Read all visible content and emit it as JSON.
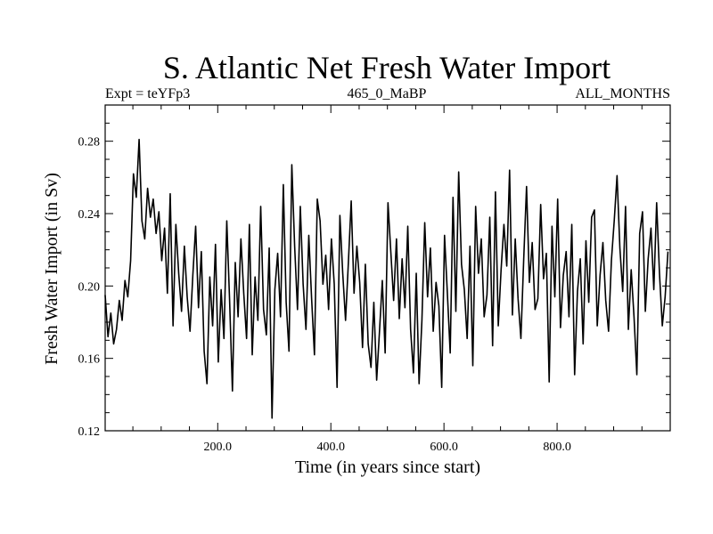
{
  "chart_data": {
    "type": "line",
    "title": "S. Atlantic Net Fresh Water Import",
    "subtitle_left": "Expt = teYFp3",
    "subtitle_center": "465_0_MaBP",
    "subtitle_right": "ALL_MONTHS",
    "xlabel": "Time (in years since start)",
    "ylabel": "Fresh Water Import (in Sv)",
    "xlim": [
      1,
      1000
    ],
    "ylim": [
      0.12,
      0.3
    ],
    "x_ticks_major": [
      200,
      400,
      600,
      800
    ],
    "x_tick_labels": [
      "200.0",
      "400.0",
      "600.0",
      "800.0"
    ],
    "y_ticks_major": [
      0.12,
      0.16,
      0.2,
      0.24,
      0.28
    ],
    "y_tick_labels": [
      "0.12",
      "0.16",
      "0.20",
      "0.24",
      "0.28"
    ],
    "series": [
      {
        "name": "net_fresh_water_import",
        "x_start": 1,
        "x_step": 5,
        "values": [
          0.195,
          0.172,
          0.185,
          0.168,
          0.176,
          0.192,
          0.181,
          0.203,
          0.194,
          0.214,
          0.262,
          0.249,
          0.281,
          0.236,
          0.226,
          0.254,
          0.238,
          0.248,
          0.229,
          0.241,
          0.214,
          0.232,
          0.196,
          0.251,
          0.178,
          0.234,
          0.207,
          0.186,
          0.222,
          0.194,
          0.175,
          0.206,
          0.233,
          0.188,
          0.219,
          0.164,
          0.146,
          0.205,
          0.178,
          0.223,
          0.158,
          0.198,
          0.171,
          0.236,
          0.192,
          0.142,
          0.213,
          0.183,
          0.226,
          0.196,
          0.171,
          0.234,
          0.162,
          0.205,
          0.181,
          0.244,
          0.187,
          0.173,
          0.221,
          0.127,
          0.198,
          0.218,
          0.183,
          0.256,
          0.191,
          0.164,
          0.267,
          0.222,
          0.187,
          0.244,
          0.201,
          0.176,
          0.228,
          0.193,
          0.162,
          0.248,
          0.236,
          0.201,
          0.217,
          0.187,
          0.226,
          0.201,
          0.144,
          0.239,
          0.207,
          0.181,
          0.213,
          0.247,
          0.196,
          0.222,
          0.202,
          0.166,
          0.212,
          0.168,
          0.155,
          0.191,
          0.148,
          0.175,
          0.203,
          0.163,
          0.246,
          0.219,
          0.192,
          0.226,
          0.182,
          0.215,
          0.188,
          0.233,
          0.176,
          0.152,
          0.207,
          0.146,
          0.181,
          0.235,
          0.194,
          0.221,
          0.175,
          0.202,
          0.189,
          0.144,
          0.228,
          0.196,
          0.163,
          0.249,
          0.186,
          0.263,
          0.212,
          0.198,
          0.171,
          0.222,
          0.156,
          0.244,
          0.207,
          0.226,
          0.183,
          0.195,
          0.238,
          0.167,
          0.252,
          0.178,
          0.209,
          0.234,
          0.211,
          0.264,
          0.184,
          0.226,
          0.193,
          0.171,
          0.215,
          0.255,
          0.202,
          0.224,
          0.187,
          0.193,
          0.245,
          0.204,
          0.218,
          0.147,
          0.233,
          0.194,
          0.248,
          0.177,
          0.206,
          0.219,
          0.183,
          0.234,
          0.151,
          0.197,
          0.215,
          0.168,
          0.225,
          0.191,
          0.238,
          0.242,
          0.178,
          0.206,
          0.224,
          0.192,
          0.175,
          0.214,
          0.236,
          0.261,
          0.221,
          0.197,
          0.244,
          0.176,
          0.209,
          0.183,
          0.151,
          0.229,
          0.241,
          0.186,
          0.215,
          0.232,
          0.198,
          0.246,
          0.207,
          0.178,
          0.194,
          0.219
        ]
      }
    ]
  }
}
